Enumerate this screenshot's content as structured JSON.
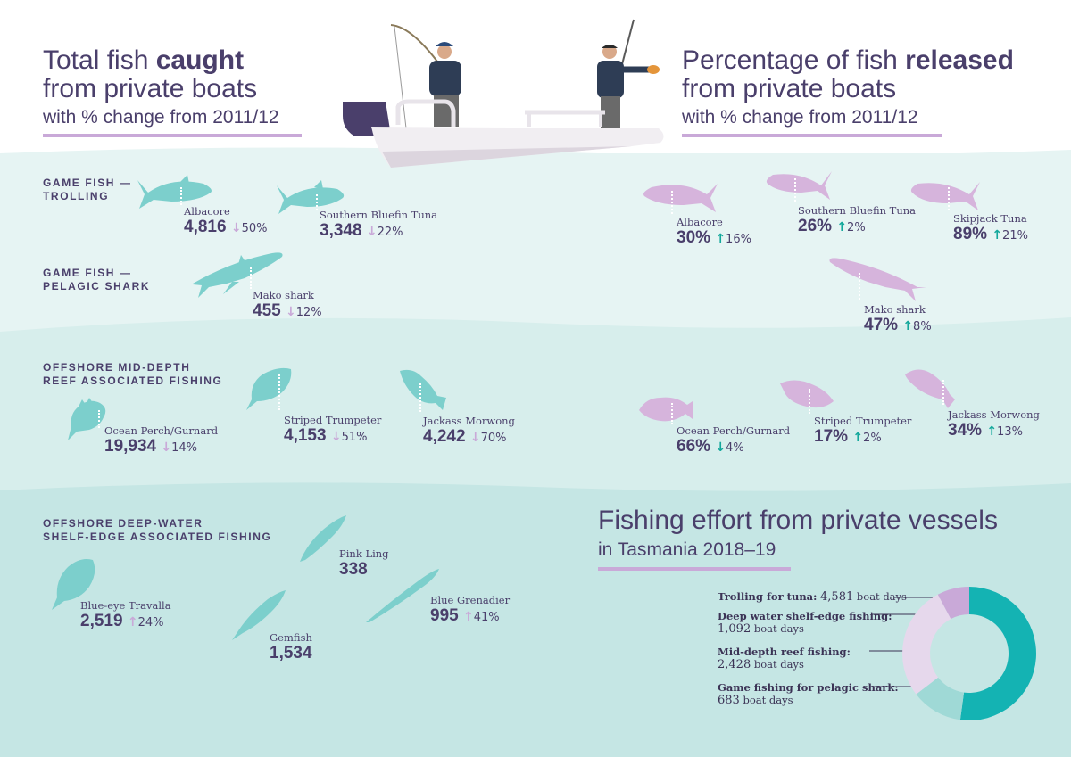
{
  "left_header": {
    "line1_a": "Total fish ",
    "line1_b": "caught",
    "line2": "from private boats",
    "line3": "with % change from 2011/12"
  },
  "right_header": {
    "line1_a": "Percentage of fish ",
    "line1_b": "released",
    "line2": "from private boats",
    "line3": "with % change from 2011/12"
  },
  "sections": {
    "trolling": {
      "l1": "GAME FISH —",
      "l2": "TROLLING"
    },
    "shark": {
      "l1": "GAME FISH —",
      "l2": "PELAGIC SHARK"
    },
    "reef": {
      "l1": "OFFSHORE MID-DEPTH",
      "l2": "REEF ASSOCIATED FISHING"
    },
    "deep": {
      "l1": "OFFSHORE DEEP-WATER",
      "l2": "SHELF-EDGE ASSOCIATED FISHING"
    }
  },
  "caught": [
    {
      "name": "Albacore",
      "value": "4,816",
      "arrow": "↓",
      "change": "50%"
    },
    {
      "name": "Southern Bluefin Tuna",
      "value": "3,348",
      "arrow": "↓",
      "change": "22%"
    },
    {
      "name": "Mako shark",
      "value": "455",
      "arrow": "↓",
      "change": "12%"
    },
    {
      "name": "Ocean Perch/Gurnard",
      "value": "19,934",
      "arrow": "↓",
      "change": "14%"
    },
    {
      "name": "Striped Trumpeter",
      "value": "4,153",
      "arrow": "↓",
      "change": "51%"
    },
    {
      "name": "Jackass Morwong",
      "value": "4,242",
      "arrow": "↓",
      "change": "70%"
    },
    {
      "name": "Blue-eye Travalla",
      "value": "2,519",
      "arrow": "↑",
      "change": "24%"
    },
    {
      "name": "Pink Ling",
      "value": "338"
    },
    {
      "name": "Gemfish",
      "value": "1,534"
    },
    {
      "name": "Blue Grenadier",
      "value": "995",
      "arrow": "↑",
      "change": "41%"
    }
  ],
  "released": [
    {
      "name": "Albacore",
      "value": "30%",
      "arrow": "↑",
      "change": "16%"
    },
    {
      "name": "Southern Bluefin Tuna",
      "value": "26%",
      "arrow": "↑",
      "change": "2%"
    },
    {
      "name": "Skipjack Tuna",
      "value": "89%",
      "arrow": "↑",
      "change": "21%"
    },
    {
      "name": "Mako shark",
      "value": "47%",
      "arrow": "↑",
      "change": "8%"
    },
    {
      "name": "Ocean Perch/Gurnard",
      "value": "66%",
      "arrow": "↓",
      "change": "4%"
    },
    {
      "name": "Striped Trumpeter",
      "value": "17%",
      "arrow": "↑",
      "change": "2%"
    },
    {
      "name": "Jackass Morwong",
      "value": "34%",
      "arrow": "↑",
      "change": "13%"
    }
  ],
  "effort": {
    "title": "Fishing effort from private vessels",
    "subtitle": "in Tasmania 2018–19",
    "unit": "boat days",
    "items": [
      {
        "label": "Trolling for tuna:",
        "value": "4,581",
        "color": "#14b3b3"
      },
      {
        "label": "Deep water shelf-edge fishing:",
        "value": "1,092",
        "color": "#9fd9d6"
      },
      {
        "label": "Mid-depth reef fishing:",
        "value": "2,428",
        "color": "#e6d8ec"
      },
      {
        "label": "Game fishing for pelagic shark:",
        "value": "683",
        "color": "#c9a9d8"
      }
    ]
  },
  "colors": {
    "navy": "#4a3f6b",
    "teal_fish": "#7ccfcc",
    "pink_fish": "#d6b4dc",
    "teal_up": "#14a89c",
    "lavender": "#c9a9d8"
  }
}
